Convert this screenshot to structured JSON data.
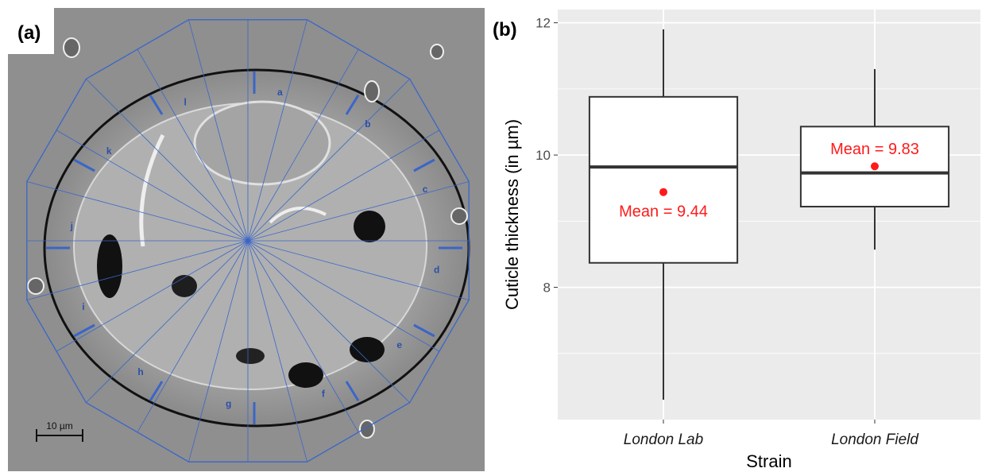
{
  "panel_a": {
    "tag": "(a)",
    "scale_bar_label": "10 µm",
    "segment_labels": [
      "a",
      "b",
      "c",
      "d",
      "e",
      "f",
      "g",
      "h",
      "i",
      "j",
      "k",
      "l"
    ],
    "colors": {
      "measure_line": "#3a66c8",
      "background": "#8f8f8f"
    }
  },
  "panel_b": {
    "tag": "(b)"
  },
  "chart_data": {
    "type": "box",
    "title": "",
    "xlabel": "Strain",
    "ylabel": "Cuticle thickness (in µm)",
    "ylim": [
      6.0,
      12.2
    ],
    "yticks": [
      8,
      10,
      12
    ],
    "categories": [
      "London Lab",
      "London Field"
    ],
    "boxes": [
      {
        "category": "London Lab",
        "whisker_low": 6.3,
        "q1": 8.37,
        "median": 9.82,
        "q3": 10.88,
        "whisker_high": 11.9,
        "mean": 9.44,
        "mean_label": "Mean = 9.44"
      },
      {
        "category": "London Field",
        "whisker_low": 8.57,
        "q1": 9.22,
        "median": 9.73,
        "q3": 10.43,
        "whisker_high": 11.3,
        "mean": 9.83,
        "mean_label": "Mean = 9.83"
      }
    ],
    "grid": true,
    "colors": {
      "panel_bg": "#ebebeb",
      "grid": "#ffffff",
      "box_fill": "#ffffff",
      "box_line": "#333333",
      "mean": "#ff1a1a"
    }
  }
}
